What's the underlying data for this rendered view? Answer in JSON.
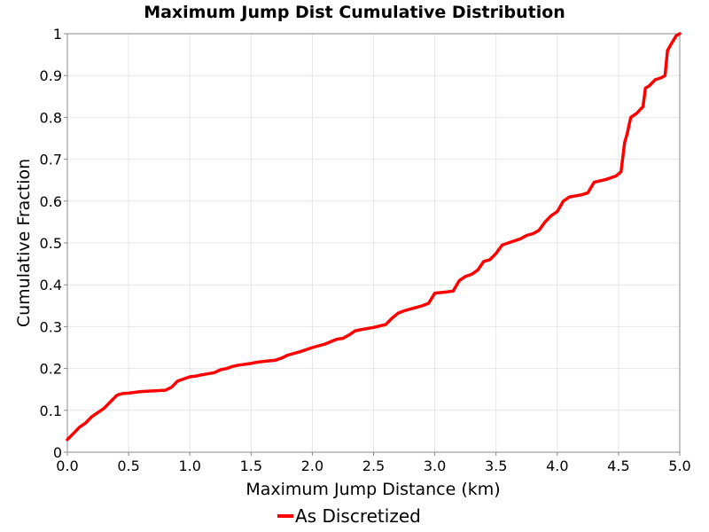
{
  "chart_data": {
    "type": "line",
    "title": "Maximum Jump Dist Cumulative Distribution",
    "xlabel": "Maximum Jump Distance (km)",
    "ylabel": "Cumulative Fraction",
    "xlim": [
      0,
      5
    ],
    "ylim": [
      0,
      1
    ],
    "xticks": [
      "0.0",
      "0.5",
      "1.0",
      "1.5",
      "2.0",
      "2.5",
      "3.0",
      "3.5",
      "4.0",
      "4.5",
      "5.0"
    ],
    "yticks": [
      "0",
      "0.1",
      "0.2",
      "0.3",
      "0.4",
      "0.5",
      "0.6",
      "0.7",
      "0.8",
      "0.9",
      "1"
    ],
    "grid": true,
    "legend_position": "bottom-center",
    "series": [
      {
        "name": "As Discretized",
        "color": "#ff0000",
        "x": [
          0.0,
          0.05,
          0.1,
          0.15,
          0.2,
          0.25,
          0.3,
          0.35,
          0.4,
          0.42,
          0.45,
          0.5,
          0.6,
          0.8,
          0.85,
          0.9,
          0.95,
          1.0,
          1.05,
          1.1,
          1.2,
          1.25,
          1.3,
          1.35,
          1.4,
          1.5,
          1.55,
          1.6,
          1.7,
          1.75,
          1.8,
          1.9,
          2.0,
          2.1,
          2.2,
          2.25,
          2.3,
          2.35,
          2.4,
          2.5,
          2.6,
          2.65,
          2.7,
          2.75,
          2.8,
          2.9,
          2.95,
          3.0,
          3.1,
          3.15,
          3.2,
          3.25,
          3.3,
          3.35,
          3.4,
          3.45,
          3.5,
          3.55,
          3.6,
          3.7,
          3.75,
          3.8,
          3.85,
          3.9,
          3.95,
          4.0,
          4.05,
          4.1,
          4.2,
          4.25,
          4.3,
          4.4,
          4.48,
          4.52,
          4.55,
          4.57,
          4.6,
          4.65,
          4.68,
          4.7,
          4.72,
          4.75,
          4.8,
          4.85,
          4.88,
          4.9,
          4.93,
          4.97,
          5.0
        ],
        "y": [
          0.03,
          0.045,
          0.06,
          0.07,
          0.085,
          0.095,
          0.105,
          0.12,
          0.135,
          0.138,
          0.14,
          0.141,
          0.145,
          0.148,
          0.155,
          0.17,
          0.175,
          0.18,
          0.182,
          0.185,
          0.19,
          0.197,
          0.2,
          0.205,
          0.208,
          0.212,
          0.215,
          0.217,
          0.22,
          0.225,
          0.232,
          0.24,
          0.25,
          0.258,
          0.27,
          0.272,
          0.28,
          0.29,
          0.293,
          0.298,
          0.305,
          0.32,
          0.332,
          0.338,
          0.342,
          0.35,
          0.356,
          0.38,
          0.383,
          0.385,
          0.41,
          0.42,
          0.425,
          0.435,
          0.456,
          0.46,
          0.475,
          0.495,
          0.5,
          0.51,
          0.518,
          0.522,
          0.53,
          0.55,
          0.565,
          0.575,
          0.6,
          0.61,
          0.615,
          0.62,
          0.645,
          0.652,
          0.66,
          0.67,
          0.74,
          0.76,
          0.8,
          0.81,
          0.82,
          0.825,
          0.87,
          0.875,
          0.89,
          0.895,
          0.9,
          0.96,
          0.975,
          0.995,
          1.0
        ]
      }
    ]
  }
}
